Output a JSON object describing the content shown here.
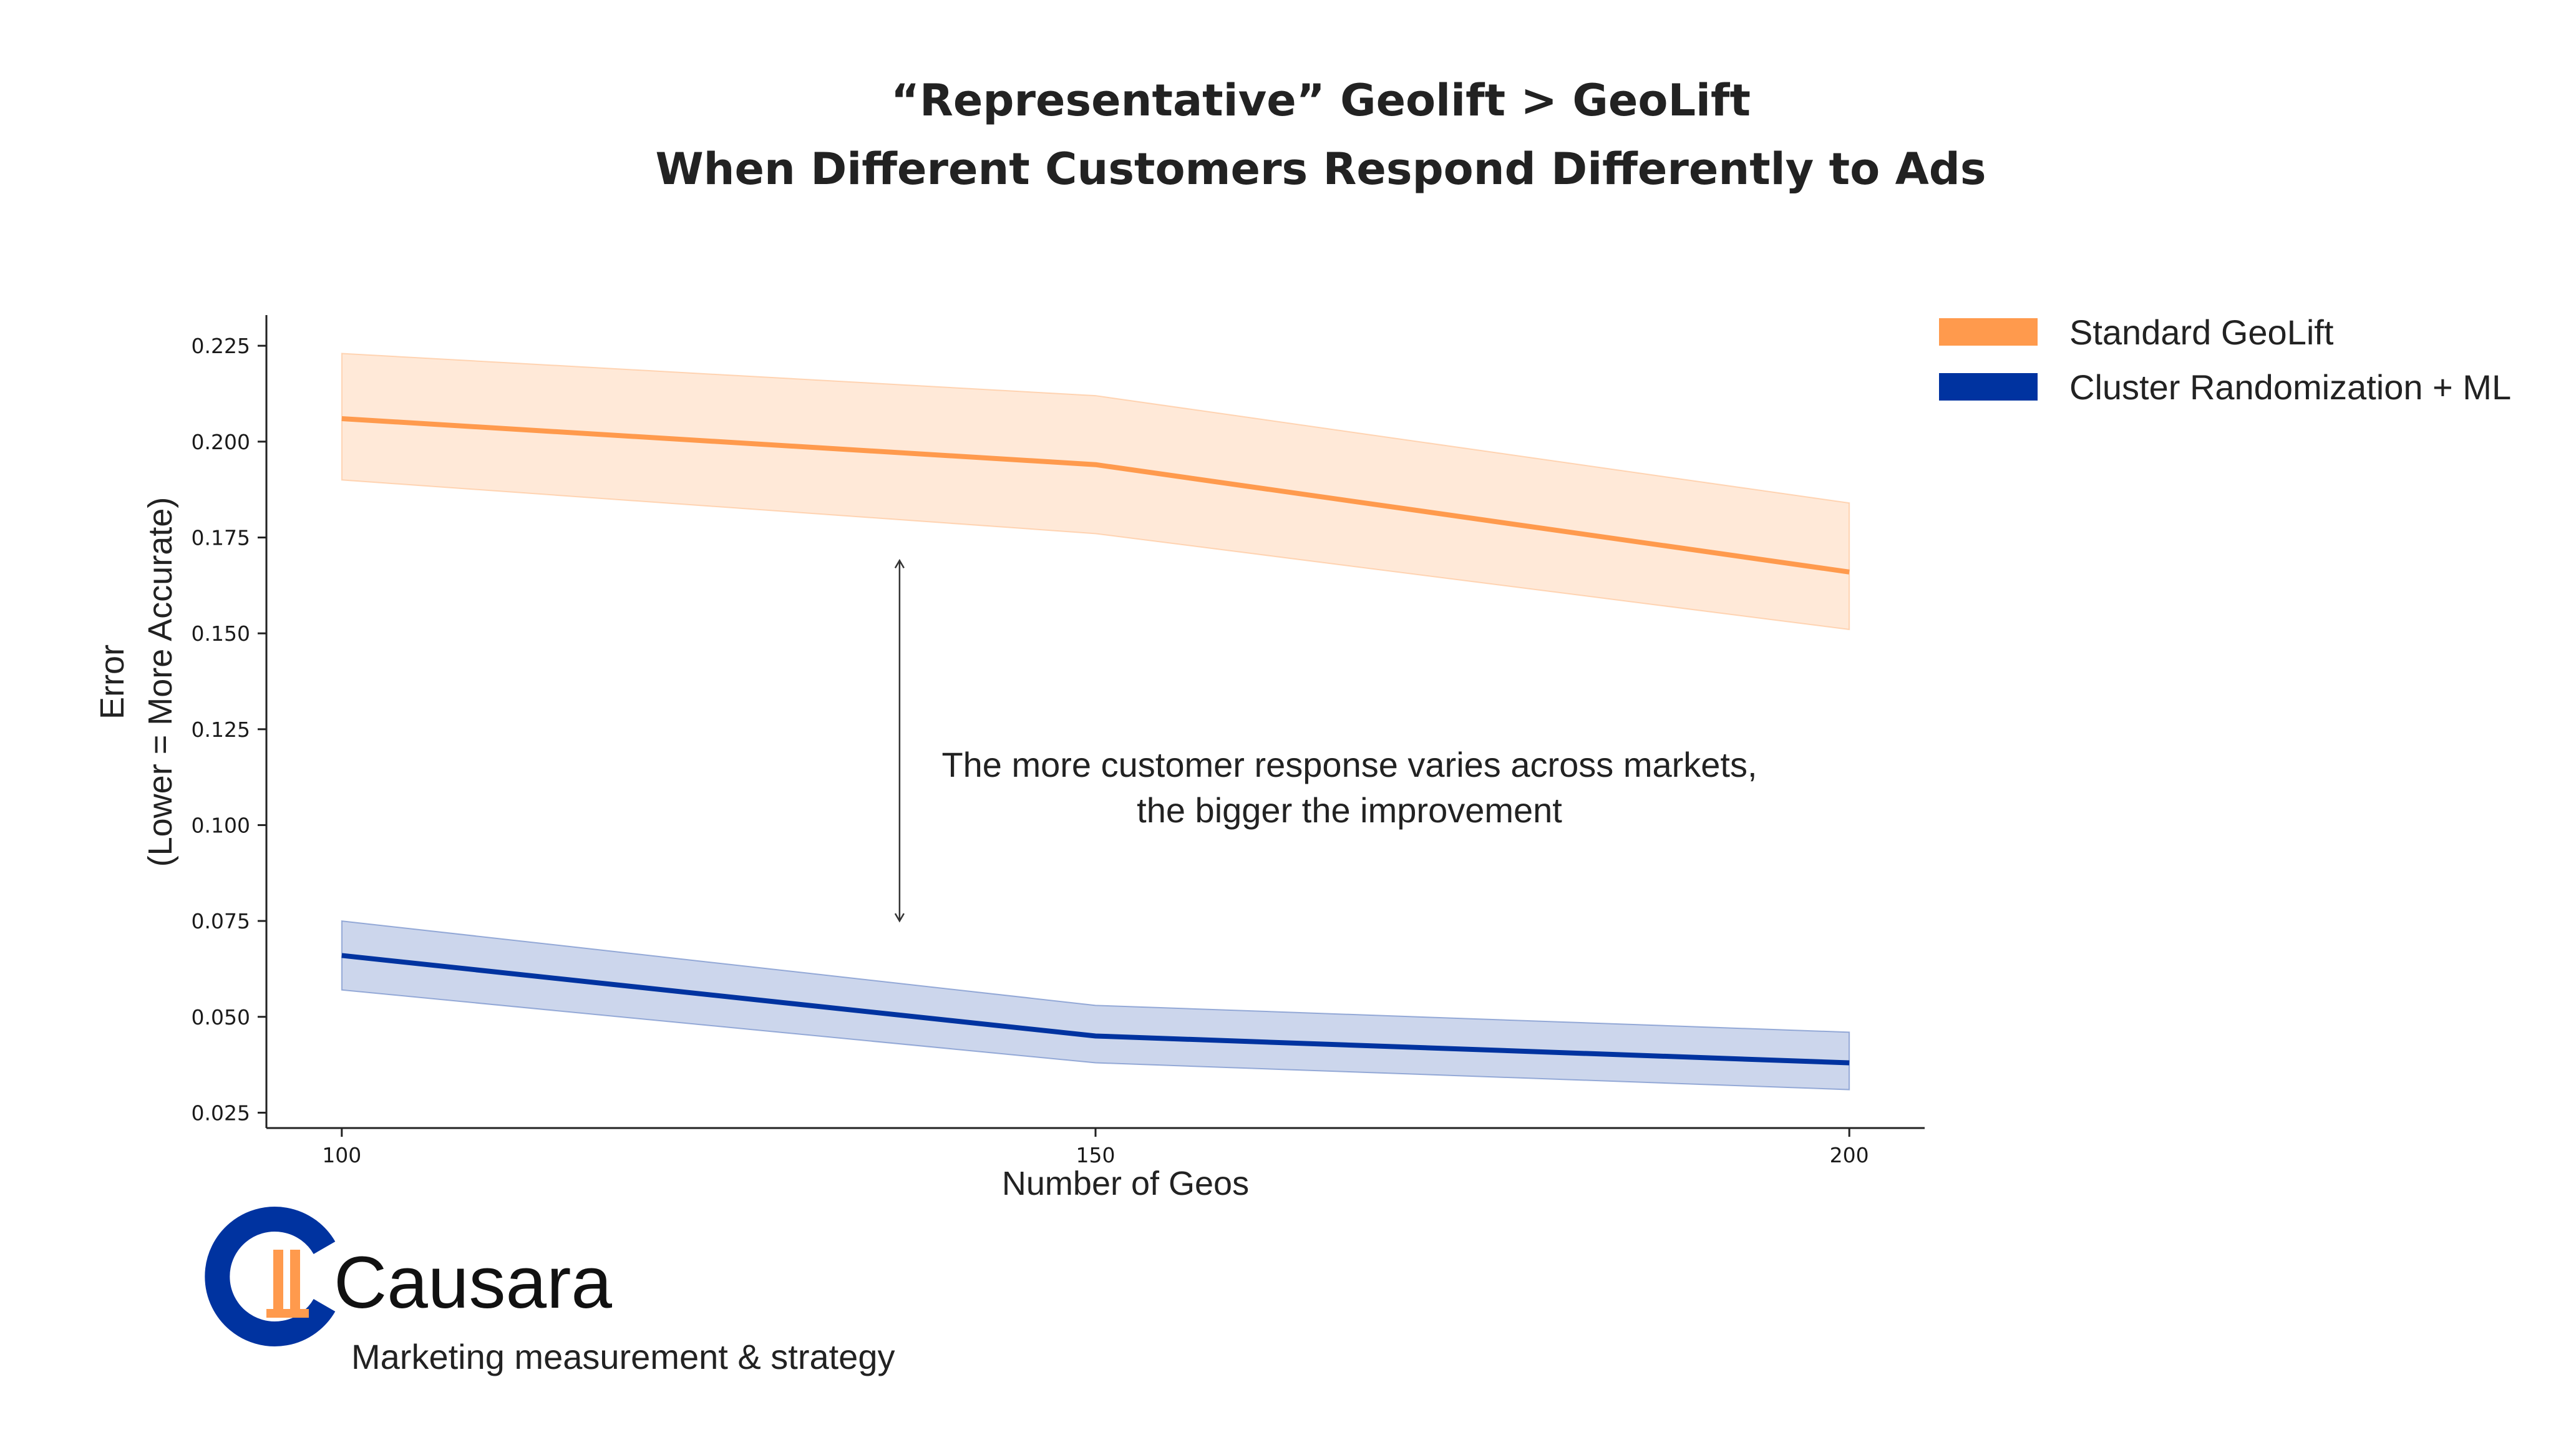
{
  "title": {
    "line1": "“Representative” Geolift > GeoLift",
    "line2": "When Different Customers Respond Differently to Ads"
  },
  "chart_data": {
    "type": "line",
    "x": [
      100,
      150,
      200
    ],
    "x_ticks": [
      "100",
      "150",
      "200"
    ],
    "y_ticks": [
      "0.025",
      "0.050",
      "0.075",
      "0.100",
      "0.125",
      "0.150",
      "0.175",
      "0.200",
      "0.225"
    ],
    "xlabel": "Number of Geos",
    "ylabel_line1": "Error",
    "ylabel_line2": "(Lower = More Accurate)",
    "xlim": [
      95,
      205
    ],
    "ylim": [
      0.021,
      0.233
    ],
    "grid": false,
    "legend_position": "top-right, outside plot",
    "series": [
      {
        "name": "Standard GeoLift",
        "color": "#FF9A4D",
        "values": [
          0.206,
          0.194,
          0.166
        ],
        "lower": [
          0.19,
          0.176,
          0.151
        ],
        "upper": [
          0.223,
          0.212,
          0.184
        ]
      },
      {
        "name": "Cluster Randomization + ML",
        "color": "#0033A0",
        "values": [
          0.066,
          0.045,
          0.038
        ],
        "lower": [
          0.057,
          0.038,
          0.031
        ],
        "upper": [
          0.075,
          0.053,
          0.046
        ]
      }
    ],
    "annotation": {
      "line1": "The more customer response varies across markets,",
      "line2": "the bigger the improvement",
      "arrow_x": 137,
      "arrow_y_range": [
        0.075,
        0.169
      ]
    }
  },
  "brand": {
    "name": "Causara",
    "tagline": "Marketing measurement & strategy",
    "logo_icon": "causara-logo-icon",
    "colors": {
      "blue": "#0033A0",
      "orange": "#FF9A4D"
    }
  }
}
